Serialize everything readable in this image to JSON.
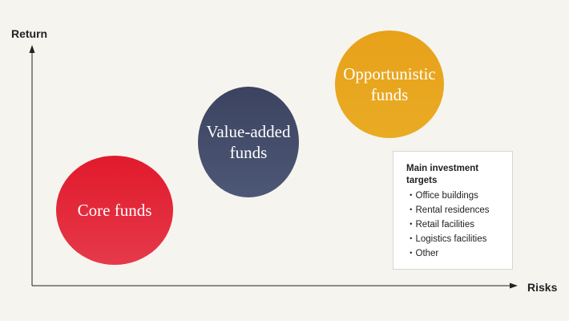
{
  "axes": {
    "y_label": "Return",
    "x_label": "Risks"
  },
  "circles": [
    {
      "label": "Core funds",
      "color": "#e11a2c"
    },
    {
      "label": "Value-added\nfunds",
      "color": "#3b4360"
    },
    {
      "label": "Opportunistic\nfunds",
      "color": "#e8a11a"
    }
  ],
  "legend": {
    "title": "Main investment targets",
    "items": [
      "・Office buildings",
      "・Rental residences",
      "・Retail facilities",
      "・Logistics facilities",
      "・Other"
    ]
  }
}
